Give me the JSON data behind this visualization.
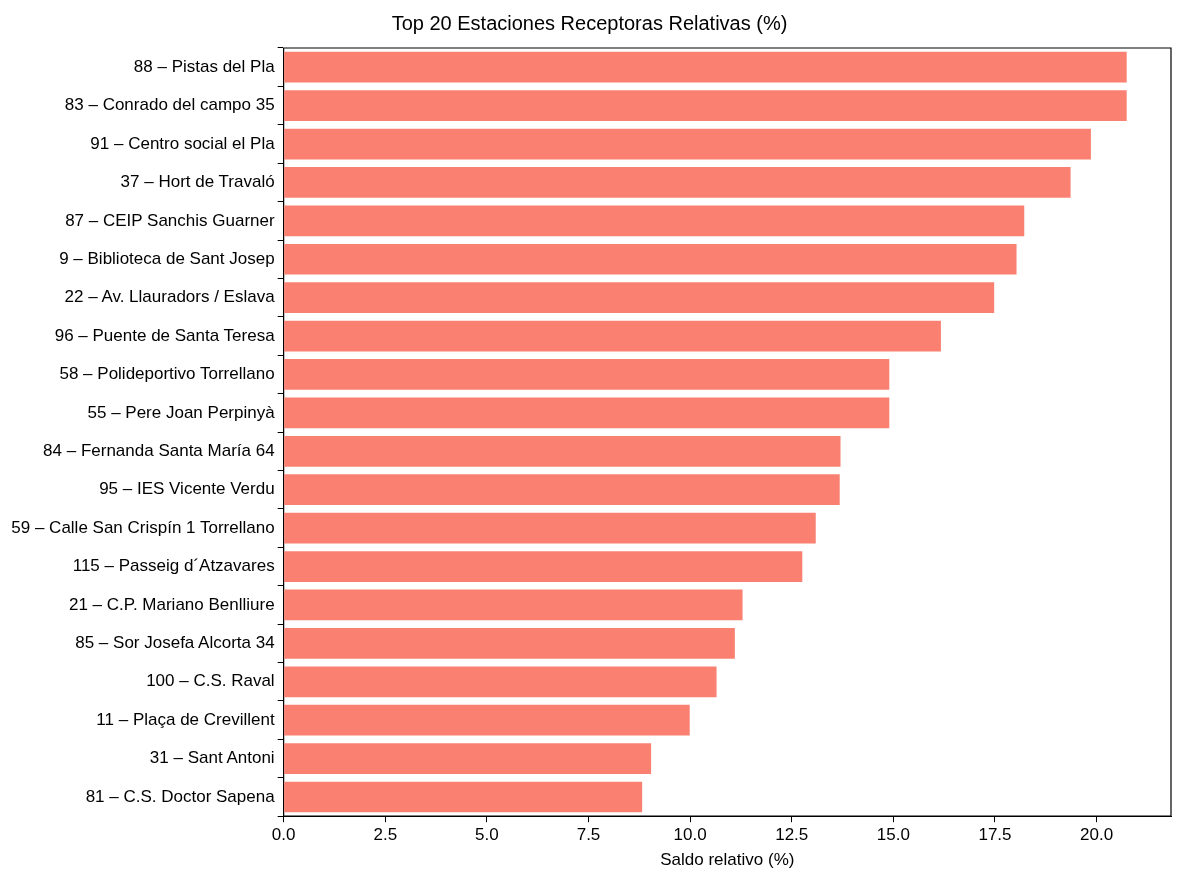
{
  "chart_data": {
    "type": "bar",
    "orientation": "horizontal",
    "title": "Top 20 Estaciones Receptoras Relativas (%)",
    "xlabel": "Saldo relativo (%)",
    "categories": [
      "88 – Pistas del Pla",
      "83 – Conrado del campo 35",
      "91 – Centro social el Pla",
      "37 – Hort de Travaló",
      "87 – CEIP Sanchis Guarner",
      "9 – Biblioteca de Sant Josep",
      "22 – Av. Llauradors / Eslava",
      "96 – Puente de Santa Teresa",
      "58 – Polideportivo Torrellano",
      "55 – Pere Joan Perpinyà",
      "84 – Fernanda Santa María 64",
      "95 – IES Vicente Verdu",
      "59 – Calle San Crispín 1 Torrellano",
      "115 – Passeig d´Atzavares",
      "21 – C.P. Mariano Benlliure",
      "85 – Sor Josefa Alcorta 34",
      "100 – C.S. Raval",
      "11 – Plaça de Crevillent",
      "31 – Sant Antoni",
      "81 – C.S. Doctor Sapena"
    ],
    "values": [
      20.74,
      20.74,
      19.86,
      19.36,
      18.22,
      18.03,
      17.48,
      16.17,
      14.9,
      14.9,
      13.7,
      13.68,
      13.09,
      12.76,
      11.29,
      11.1,
      10.65,
      9.99,
      9.04,
      8.82
    ],
    "color": "#fa8072",
    "xlim": [
      0,
      21.83
    ],
    "xticks": [
      {
        "value": 0,
        "label": "0.0"
      },
      2.5,
      {
        "value": 5,
        "label": "5.0"
      },
      7.5,
      {
        "value": 10,
        "label": "10.0"
      },
      12.5,
      {
        "value": 15,
        "label": "15.0"
      },
      17.5,
      {
        "value": 20,
        "label": "20.0"
      }
    ],
    "grid": false,
    "legend": false
  }
}
